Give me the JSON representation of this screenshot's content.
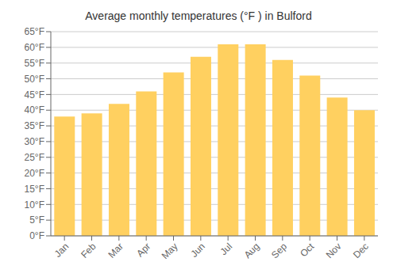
{
  "chart_data": {
    "type": "bar",
    "title": "Average monthly temperatures (°F ) in Bulford",
    "categories": [
      "Jan",
      "Feb",
      "Mar",
      "Apr",
      "May",
      "Jun",
      "Jul",
      "Aug",
      "Sep",
      "Oct",
      "Nov",
      "Dec"
    ],
    "values": [
      38,
      39,
      42,
      46,
      52,
      57,
      61,
      61,
      56,
      51,
      44,
      40
    ],
    "color": "#FFD060",
    "ylim": [
      0,
      65
    ],
    "yticks": [
      {
        "value": 0,
        "label": "0°F"
      },
      {
        "value": 5,
        "label": "5°F"
      },
      {
        "value": 10,
        "label": "10°F"
      },
      {
        "value": 15,
        "label": "15°F"
      },
      {
        "value": 20,
        "label": "20°F"
      },
      {
        "value": 25,
        "label": "25°F"
      },
      {
        "value": 30,
        "label": "30°F"
      },
      {
        "value": 35,
        "label": "35°F"
      },
      {
        "value": 40,
        "label": "40°F"
      },
      {
        "value": 45,
        "label": "45°F"
      },
      {
        "value": 50,
        "label": "50°F"
      },
      {
        "value": 55,
        "label": "55°F"
      },
      {
        "value": 60,
        "label": "60°F"
      },
      {
        "value": 65,
        "label": "65°F"
      }
    ],
    "grid": true
  }
}
